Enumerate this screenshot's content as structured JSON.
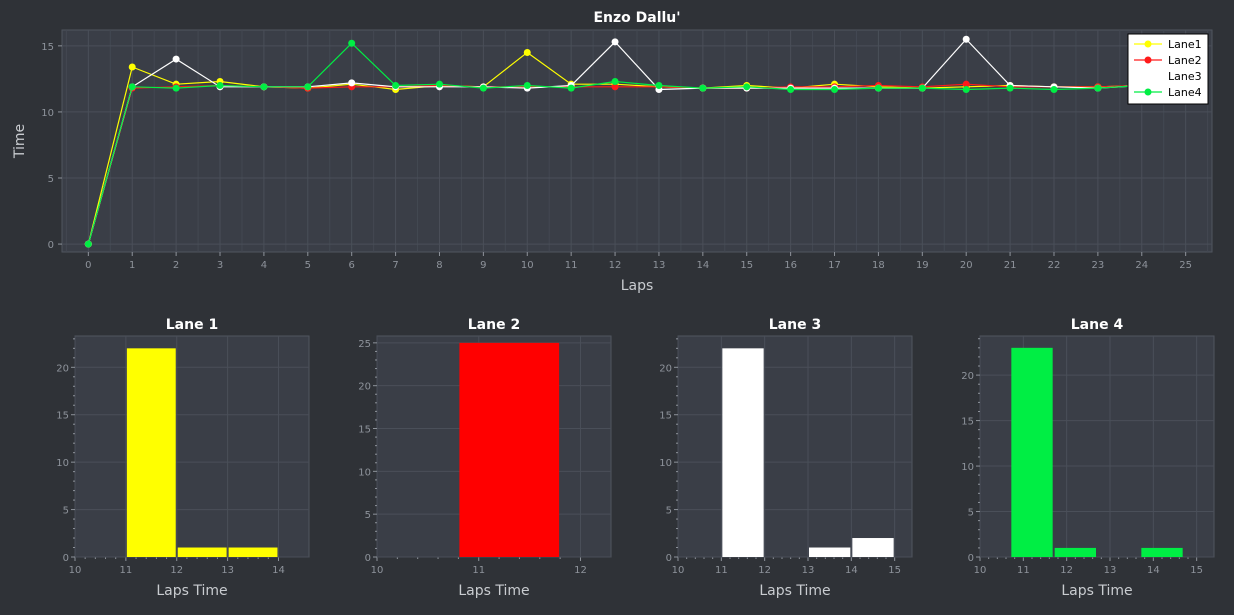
{
  "colors": {
    "background": "#2f3237",
    "plot_bg": "#3a3e47",
    "grid": "#4a4f59",
    "axis_text": "#8e939b",
    "label_text": "#c9ccd0",
    "title_text": "#ffffff"
  },
  "chart_data": [
    {
      "type": "line",
      "title": "Enzo Dallu'",
      "xlabel": "Laps",
      "ylabel": "Time",
      "xlim": [
        -0.6,
        25.6
      ],
      "ylim": [
        -0.6,
        16.2
      ],
      "xticks": [
        0,
        1,
        2,
        3,
        4,
        5,
        6,
        7,
        8,
        9,
        10,
        11,
        12,
        13,
        14,
        15,
        16,
        17,
        18,
        19,
        20,
        21,
        22,
        23,
        24,
        25
      ],
      "yticks": [
        0,
        5,
        10,
        15
      ],
      "x": [
        0,
        1,
        2,
        3,
        4,
        5,
        6,
        7,
        8,
        9,
        10,
        11,
        12,
        13,
        14,
        15,
        16,
        17,
        18,
        19,
        20,
        21,
        22,
        23,
        24
      ],
      "legend_position": "top-right",
      "series": [
        {
          "name": "Lane1",
          "color": "#ffff00",
          "values": [
            0,
            13.4,
            12.1,
            12.3,
            11.9,
            11.8,
            12.1,
            11.7,
            12.0,
            11.9,
            14.5,
            12.1,
            12.1,
            11.9,
            11.8,
            12.0,
            11.8,
            12.1,
            11.9,
            11.8,
            11.9,
            12.0,
            11.9,
            11.9,
            12.0
          ]
        },
        {
          "name": "Lane2",
          "color": "#ff1a1a",
          "values": [
            0,
            11.8,
            11.9,
            12.0,
            11.9,
            11.8,
            11.9,
            11.9,
            12.0,
            11.9,
            11.9,
            11.9,
            11.9,
            11.9,
            11.8,
            11.8,
            11.9,
            11.9,
            12.0,
            11.9,
            12.1,
            11.9,
            11.9,
            11.9,
            12.0
          ]
        },
        {
          "name": "Lane3",
          "color": "#ffffff",
          "values": [
            0,
            11.9,
            14.0,
            11.9,
            11.9,
            11.9,
            12.2,
            11.9,
            11.9,
            11.9,
            11.8,
            12.0,
            15.3,
            11.7,
            11.8,
            11.8,
            11.8,
            11.8,
            11.8,
            11.8,
            15.5,
            12.0,
            11.9,
            11.8,
            12.0
          ]
        },
        {
          "name": "Lane4",
          "color": "#00ee44",
          "values": [
            0,
            11.9,
            11.8,
            12.0,
            11.9,
            11.9,
            15.2,
            12.0,
            12.1,
            11.8,
            12.0,
            11.8,
            12.3,
            12.0,
            11.8,
            11.9,
            11.7,
            11.7,
            11.8,
            11.8,
            11.7,
            11.8,
            11.7,
            11.8,
            12.0
          ]
        }
      ]
    },
    {
      "type": "bar",
      "title": "Lane 1",
      "xlabel": "Laps Time",
      "color": "#ffff00",
      "xlim": [
        10,
        14.6
      ],
      "ylim": [
        0,
        23.3
      ],
      "xticks": [
        10,
        11,
        12,
        13,
        14
      ],
      "yticks": [
        0,
        5,
        10,
        15,
        20
      ],
      "bins": [
        {
          "start": 11,
          "end": 12,
          "value": 22
        },
        {
          "start": 12,
          "end": 13,
          "value": 1
        },
        {
          "start": 13,
          "end": 14,
          "value": 1
        }
      ]
    },
    {
      "type": "bar",
      "title": "Lane 2",
      "xlabel": "Laps Time",
      "color": "#ff0000",
      "xlim": [
        10,
        12.3
      ],
      "ylim": [
        0,
        25.8
      ],
      "xticks": [
        10,
        11,
        12
      ],
      "yticks": [
        0,
        5,
        10,
        15,
        20,
        25
      ],
      "bins": [
        {
          "start": 10.8,
          "end": 11.8,
          "value": 25
        }
      ]
    },
    {
      "type": "bar",
      "title": "Lane 3",
      "xlabel": "Laps Time",
      "color": "#ffffff",
      "xlim": [
        10,
        15.4
      ],
      "ylim": [
        0,
        23.3
      ],
      "xticks": [
        10,
        11,
        12,
        13,
        14,
        15
      ],
      "yticks": [
        0,
        5,
        10,
        15,
        20
      ],
      "bins": [
        {
          "start": 11,
          "end": 12,
          "value": 22
        },
        {
          "start": 13,
          "end": 14,
          "value": 1
        },
        {
          "start": 14,
          "end": 15,
          "value": 2
        }
      ]
    },
    {
      "type": "bar",
      "title": "Lane 4",
      "xlabel": "Laps Time",
      "color": "#00ee44",
      "xlim": [
        10,
        15.4
      ],
      "ylim": [
        0,
        24.3
      ],
      "xticks": [
        10,
        11,
        12,
        13,
        14,
        15
      ],
      "yticks": [
        0,
        5,
        10,
        15,
        20
      ],
      "bins": [
        {
          "start": 10.7,
          "end": 11.7,
          "value": 23
        },
        {
          "start": 11.7,
          "end": 12.7,
          "value": 1
        },
        {
          "start": 13.7,
          "end": 14.7,
          "value": 1
        }
      ]
    }
  ]
}
